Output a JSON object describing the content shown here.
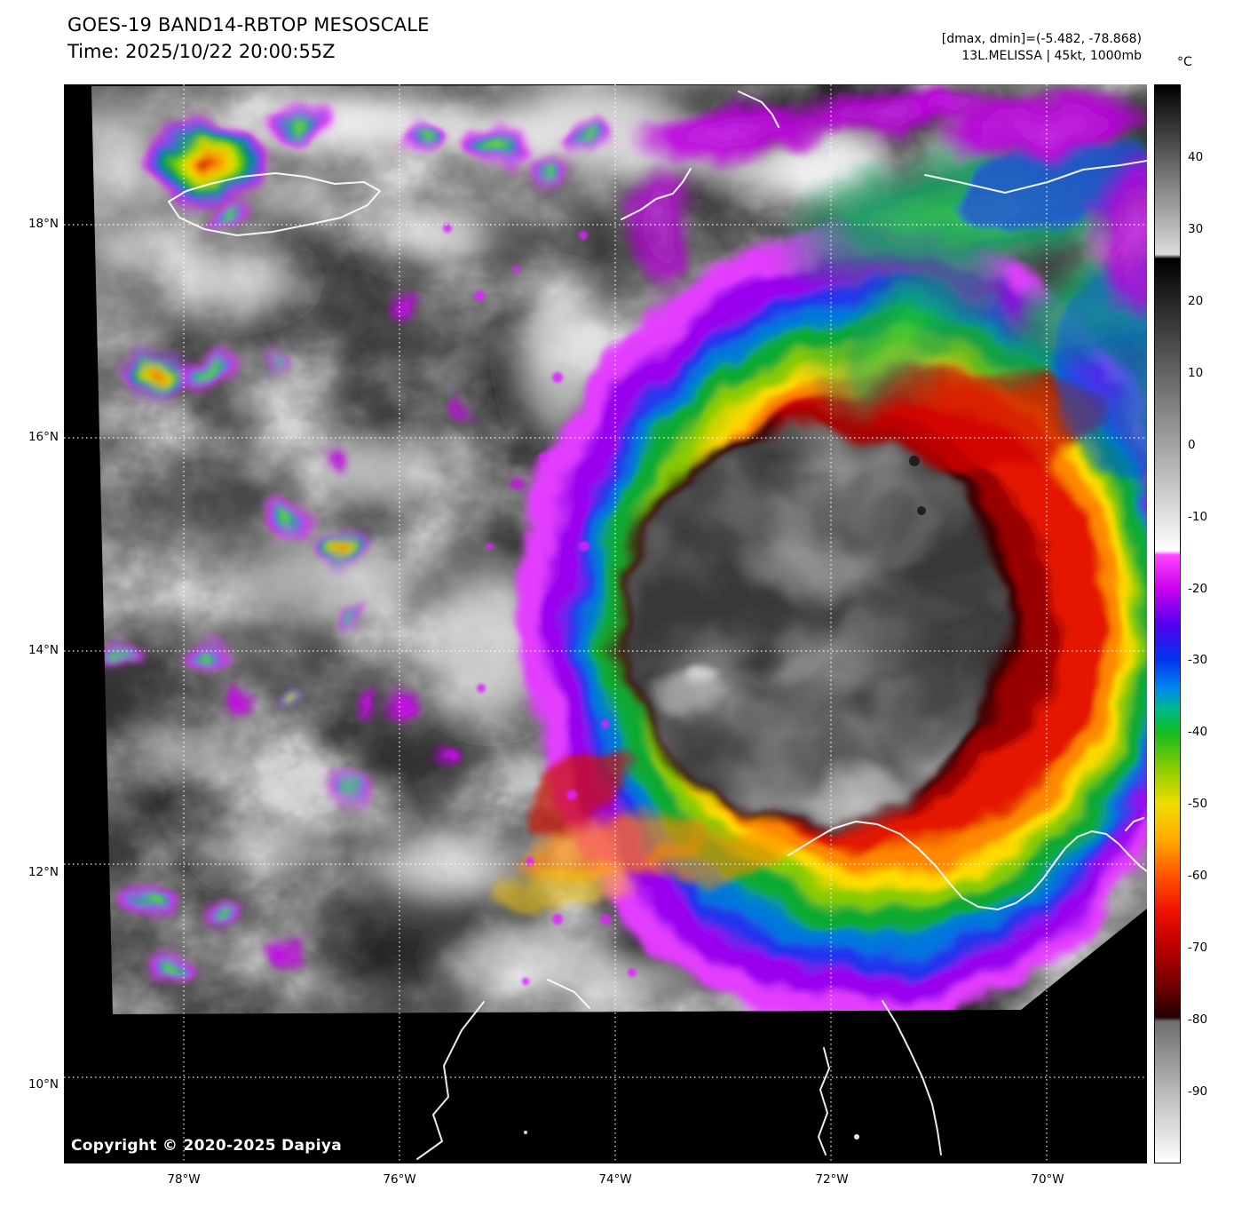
{
  "header": {
    "title": "GOES-19 BAND14-RBTOP MESOSCALE",
    "time": "Time: 2025/10/22 20:00:55Z",
    "range_label": "[dmax, dmin]=(-5.482, -78.868)",
    "storm_label": "13L.MELISSA | 45kt, 1000mb"
  },
  "product": {
    "satellite": "GOES-19",
    "band": "BAND14",
    "enhancement": "RBTOP",
    "sector": "MESOSCALE",
    "storm_id": "13L",
    "storm_name": "MELISSA",
    "intensity": "45kt",
    "pressure": "1000mb",
    "dmax": "-5.482",
    "dmin": "-78.868"
  },
  "colorbar": {
    "unit": "°C",
    "tick_labels": [
      "40",
      "30",
      "20",
      "10",
      "0",
      "-10",
      "-20",
      "-30",
      "-40",
      "-50",
      "-60",
      "-70",
      "-80",
      "-90"
    ],
    "gradient_stops": [
      [
        0,
        "#000000"
      ],
      [
        15.7,
        "#dcdcdc"
      ],
      [
        16.1,
        "#000000"
      ],
      [
        43.2,
        "#ffffff"
      ],
      [
        43.6,
        "#ff44ff"
      ],
      [
        46.7,
        "#cc00ee"
      ],
      [
        50,
        "#5500ee"
      ],
      [
        53.3,
        "#0033ee"
      ],
      [
        56,
        "#0088ee"
      ],
      [
        58,
        "#00bb88"
      ],
      [
        60,
        "#11bb22"
      ],
      [
        63.3,
        "#88cc00"
      ],
      [
        66.7,
        "#eedd00"
      ],
      [
        70,
        "#ffaa00"
      ],
      [
        73.3,
        "#ff5500"
      ],
      [
        76.7,
        "#ee1100"
      ],
      [
        80,
        "#bb0000"
      ],
      [
        83.3,
        "#770000"
      ],
      [
        86.5,
        "#250000"
      ],
      [
        86.9,
        "#6e6e6e"
      ],
      [
        93.3,
        "#b8b8b8"
      ],
      [
        100,
        "#ffffff"
      ]
    ]
  },
  "map": {
    "lat_labels": [
      "18°N",
      "16°N",
      "14°N",
      "12°N",
      "10°N"
    ],
    "lon_labels": [
      "78°W",
      "76°W",
      "74°W",
      "72°W",
      "70°W"
    ],
    "copyright": "Copyright © 2020-2025 Dapiya"
  }
}
